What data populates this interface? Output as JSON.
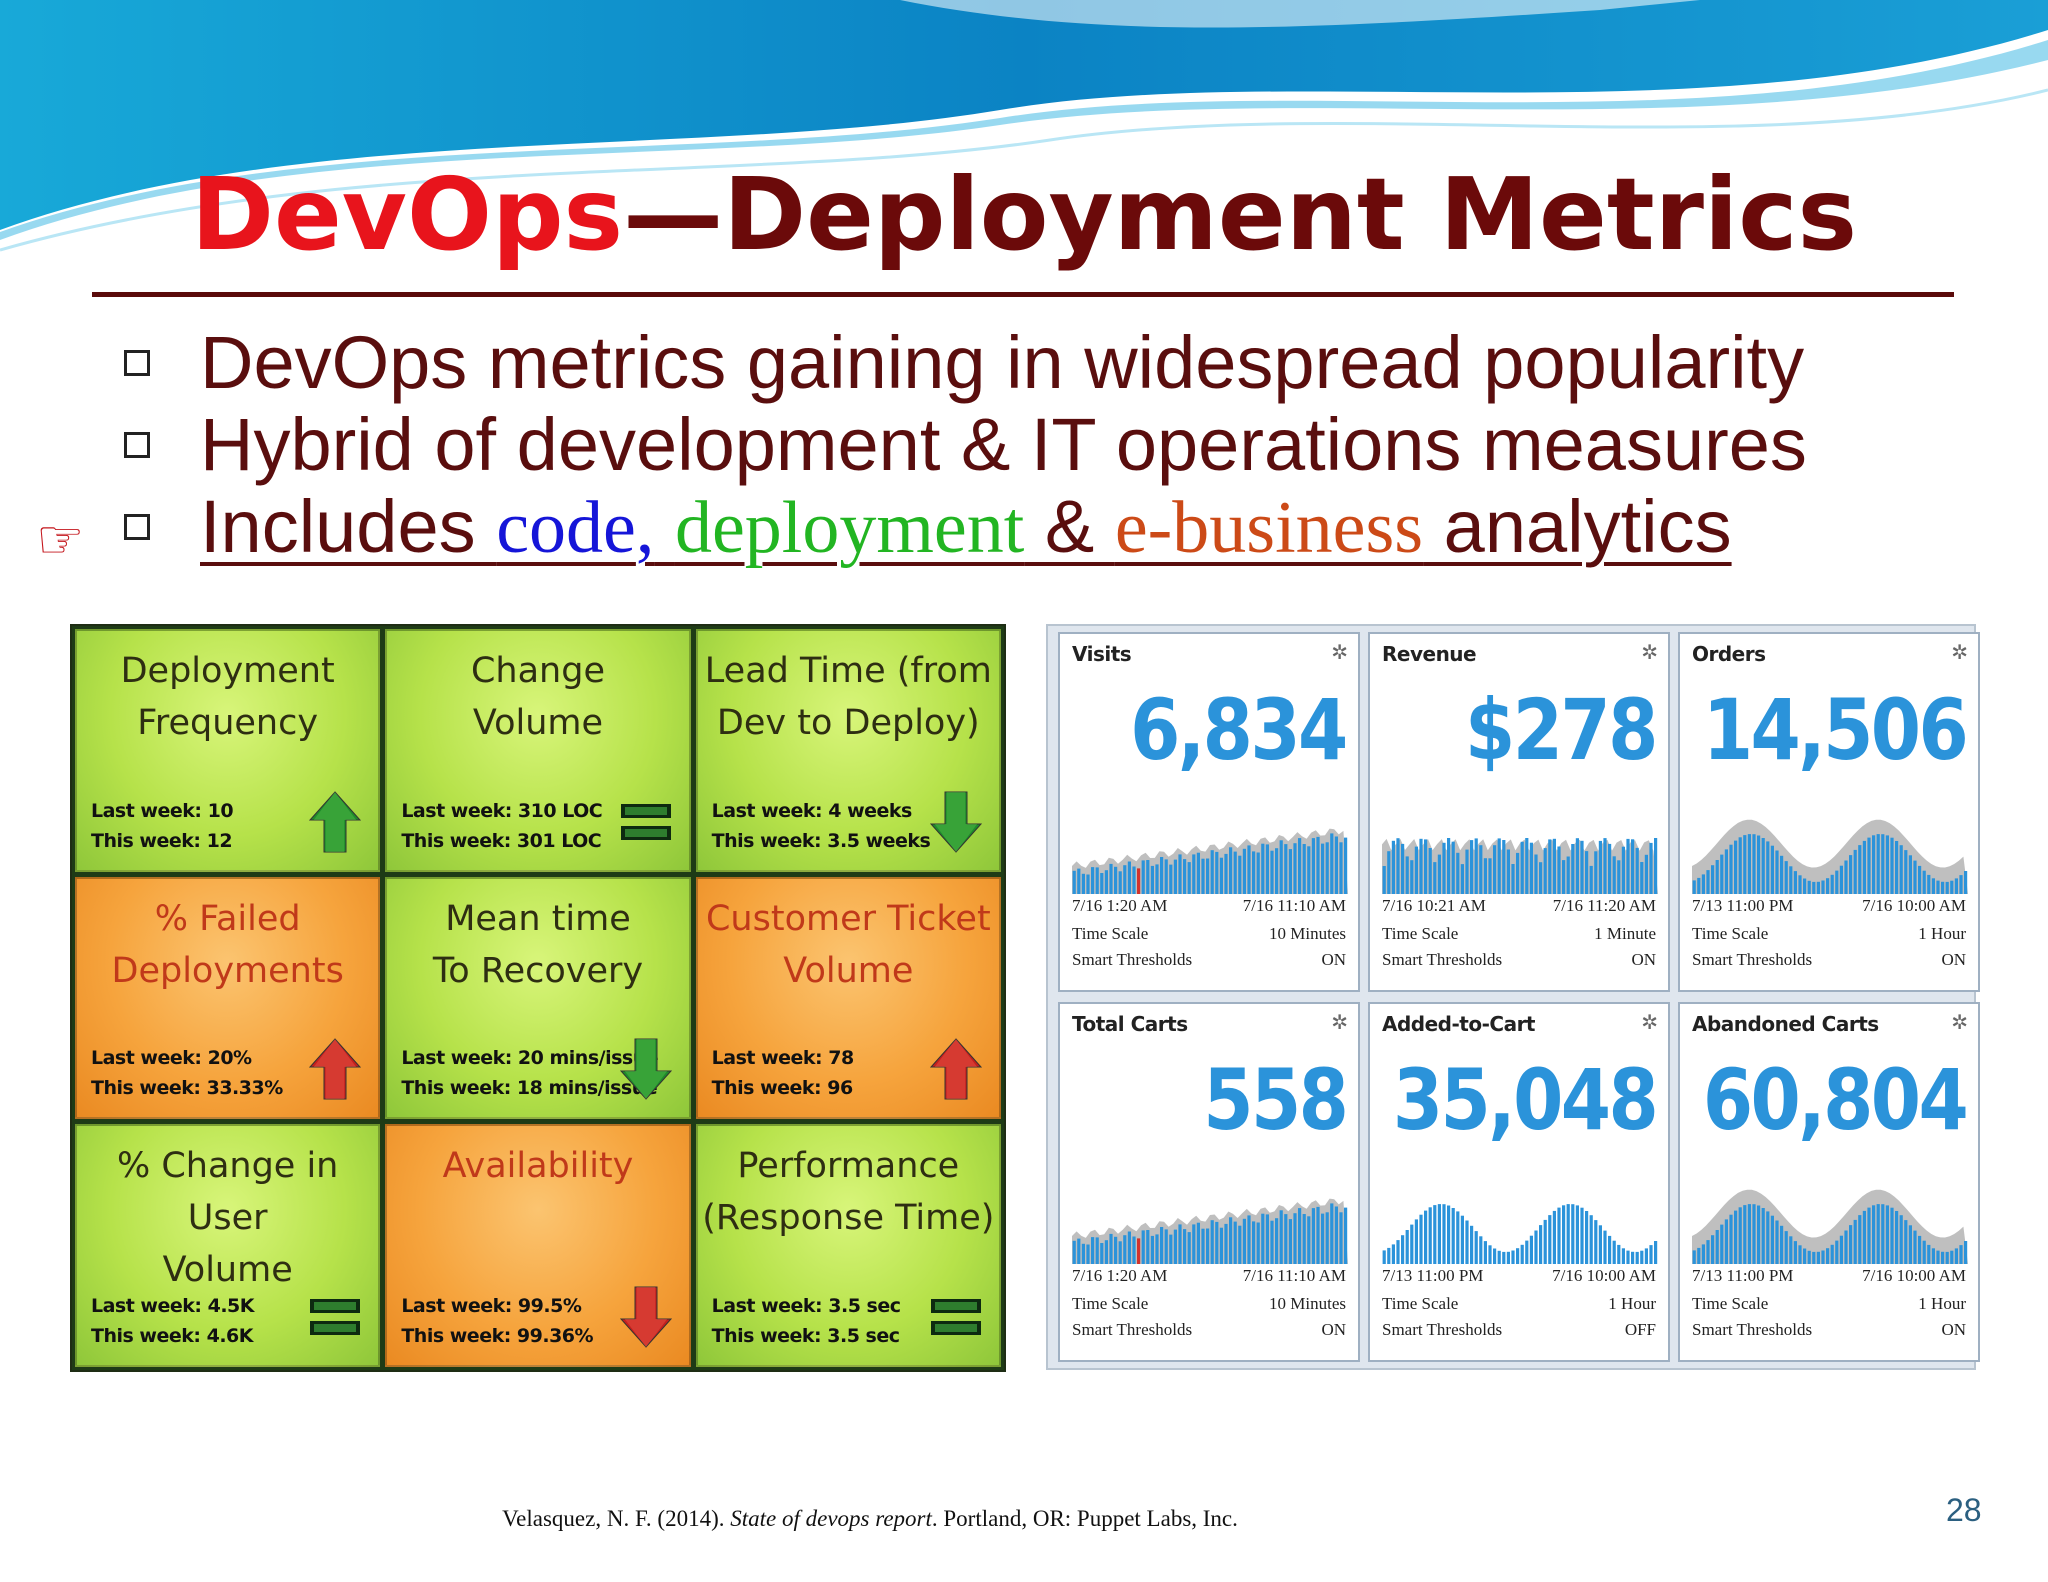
{
  "slide": {
    "title_accent": "DevOps",
    "title_rest": "—Deployment Metrics",
    "bullets": [
      "DevOps metrics gaining in widespread popularity",
      "Hybrid of development & IT operations measures"
    ],
    "highlight_bullet": {
      "before": "Includes ",
      "code": "code",
      "comma": ",",
      "deployment": "deployment",
      "amp": " & ",
      "ebusiness": "e-business",
      "after": " analytics"
    },
    "pointer_icon": "pointing-hand-icon",
    "citation": {
      "author": "Velasquez, N. F. (2014). ",
      "work": "State of devops report",
      "rest": ". Portland, OR: Puppet Labs, Inc."
    },
    "page_number": "28"
  },
  "deployment_tiles": [
    {
      "name": "Deployment\nFrequency",
      "color": "green",
      "last": "Last week: 10",
      "this": "This week: 12",
      "icon": "arrow-up-icon"
    },
    {
      "name": "Change\nVolume",
      "color": "green",
      "last": "Last week: 310 LOC",
      "this": "This week: 301 LOC",
      "icon": "equal-icon"
    },
    {
      "name": "Lead Time (from\nDev to Deploy)",
      "color": "green",
      "last": "Last week: 4 weeks",
      "this": "This week: 3.5 weeks",
      "icon": "arrow-down-icon"
    },
    {
      "name": "% Failed\nDeployments",
      "color": "orange",
      "last": "Last week: 20%",
      "this": "This week: 33.33%",
      "icon": "arrow-up-icon"
    },
    {
      "name": "Mean time\nTo Recovery",
      "color": "green",
      "last": "Last week: 20 mins/issue",
      "this": "This week: 18 mins/issue",
      "icon": "arrow-down-icon"
    },
    {
      "name": "Customer Ticket\nVolume",
      "color": "orange",
      "last": "Last week: 78",
      "this": "This week: 96",
      "icon": "arrow-up-icon"
    },
    {
      "name": "% Change in User\nVolume",
      "color": "green",
      "last": "Last week: 4.5K",
      "this": "This week: 4.6K",
      "icon": "equal-icon"
    },
    {
      "name": "Availability",
      "color": "orange",
      "last": "Last week: 99.5%",
      "this": "This week: 99.36%",
      "icon": "arrow-down-icon"
    },
    {
      "name": "Performance\n(Response Time)",
      "color": "green",
      "last": "Last week: 3.5 sec",
      "this": "This week: 3.5 sec",
      "icon": "equal-icon"
    }
  ],
  "ebusiness_cards": [
    {
      "name": "Visits",
      "value": "6,834",
      "start": "7/16 1:20 AM",
      "end": "7/16 11:10 AM",
      "time_scale_label": "Time Scale",
      "time_scale": "10 Minutes",
      "thresholds_label": "Smart Thresholds",
      "thresholds": "ON",
      "pattern": "rising"
    },
    {
      "name": "Revenue",
      "value": "$278",
      "start": "7/16 10:21 AM",
      "end": "7/16 11:20 AM",
      "time_scale_label": "Time Scale",
      "time_scale": "1 Minute",
      "thresholds_label": "Smart Thresholds",
      "thresholds": "ON",
      "pattern": "noisy"
    },
    {
      "name": "Orders",
      "value": "14,506",
      "start": "7/13 11:00 PM",
      "end": "7/16 10:00 AM",
      "time_scale_label": "Time Scale",
      "time_scale": "1 Hour",
      "thresholds_label": "Smart Thresholds",
      "thresholds": "ON",
      "pattern": "wave"
    },
    {
      "name": "Total Carts",
      "value": "558",
      "start": "7/16 1:20 AM",
      "end": "7/16 11:10 AM",
      "time_scale_label": "Time Scale",
      "time_scale": "10 Minutes",
      "thresholds_label": "Smart Thresholds",
      "thresholds": "ON",
      "pattern": "rising"
    },
    {
      "name": "Added-to-Cart",
      "value": "35,048",
      "start": "7/13 11:00 PM",
      "end": "7/16 10:00 AM",
      "time_scale_label": "Time Scale",
      "time_scale": "1 Hour",
      "thresholds_label": "Smart Thresholds",
      "thresholds": "OFF",
      "pattern": "wave-bare"
    },
    {
      "name": "Abandoned Carts",
      "value": "60,804",
      "start": "7/13 11:00 PM",
      "end": "7/16 10:00 AM",
      "time_scale_label": "Time Scale",
      "time_scale": "1 Hour",
      "thresholds_label": "Smart Thresholds",
      "thresholds": "ON",
      "pattern": "wave"
    }
  ],
  "colors": {
    "title_accent": "#e8141c",
    "title": "#6b0a0a",
    "code": "#1515d8",
    "deployment": "#22b522",
    "ebusiness": "#cc4a17",
    "metric_value": "#2b93da"
  }
}
